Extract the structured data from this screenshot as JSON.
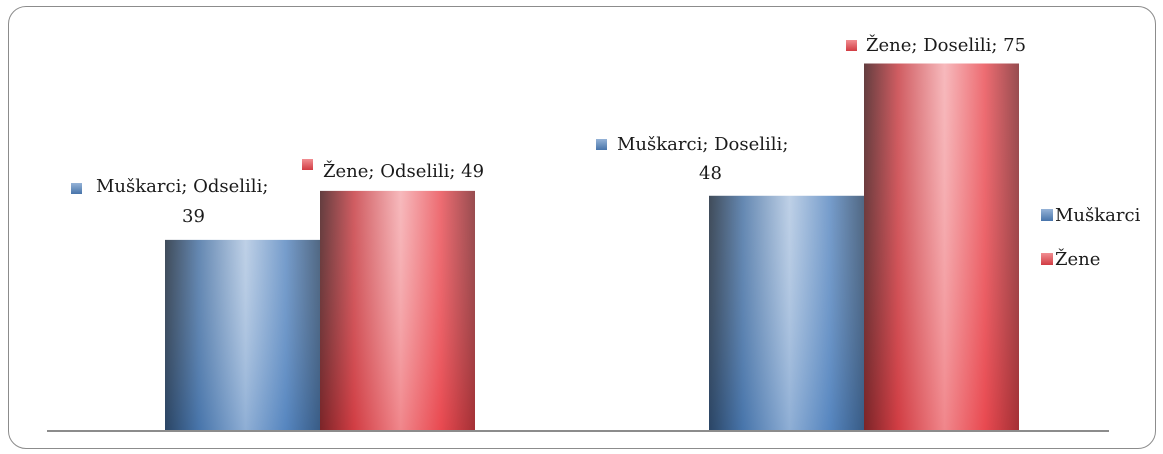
{
  "chart_data": {
    "type": "bar",
    "categories": [
      "Odselili",
      "Doselili"
    ],
    "series": [
      {
        "name": "Muškarci",
        "values": [
          39,
          48
        ],
        "color": "#4f81bd",
        "data_labels": [
          [
            "Muškarci; Odselili;",
            "39"
          ],
          [
            "Muškarci; Doselili;",
            "48"
          ]
        ]
      },
      {
        "name": "Žene",
        "values": [
          49,
          75
        ],
        "color": "#e8434a",
        "data_labels": [
          [
            "Žene; Odselili; 49"
          ],
          [
            "Žene; Doselili; 75"
          ]
        ]
      }
    ],
    "ylim": [
      0,
      80
    ],
    "legend": "right",
    "grid": false
  }
}
